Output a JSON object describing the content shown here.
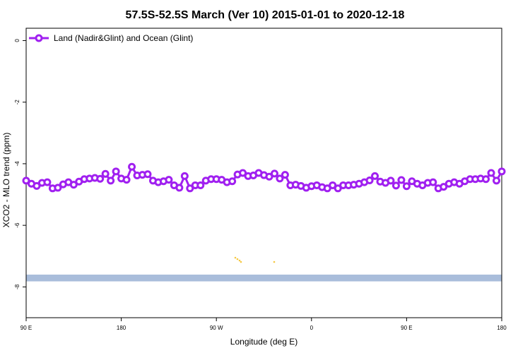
{
  "chart_data": {
    "type": "line",
    "title": "57.5S-52.5S March (Ver 10)   2015-01-01 to 2020-12-18",
    "xlabel": "Longitude (deg E)",
    "ylabel": "XCO2 - MLO trend (ppm)",
    "xlim": [
      90,
      450
    ],
    "ylim": [
      -9.0,
      0.4
    ],
    "x_ticks": [
      {
        "value": 90,
        "label": "90 E"
      },
      {
        "value": 180,
        "label": "180"
      },
      {
        "value": 270,
        "label": "90 W"
      },
      {
        "value": 360,
        "label": "0"
      },
      {
        "value": 450,
        "label": "90 E"
      },
      {
        "value": 540,
        "label": "180"
      }
    ],
    "y_ticks": [
      {
        "value": 0,
        "label": "0"
      },
      {
        "value": -2,
        "label": "-2"
      },
      {
        "value": -4,
        "label": "-4"
      },
      {
        "value": -6,
        "label": "-6"
      },
      {
        "value": -8,
        "label": "-8"
      }
    ],
    "x_note": "Longitude sampled every 5 degrees from 90 E eastward through 180 and back to 90 E/180 (unwrapped 90..540)",
    "series": [
      {
        "name": "Land (Nadir&Glint) and Ocean (Glint)",
        "color": "#a020f0",
        "x_start": 90,
        "x_step": 5,
        "values": [
          -4.55,
          -4.65,
          -4.72,
          -4.62,
          -4.6,
          -4.8,
          -4.78,
          -4.67,
          -4.6,
          -4.68,
          -4.58,
          -4.5,
          -4.48,
          -4.46,
          -4.49,
          -4.33,
          -4.55,
          -4.25,
          -4.48,
          -4.52,
          -4.1,
          -4.38,
          -4.36,
          -4.34,
          -4.55,
          -4.6,
          -4.57,
          -4.52,
          -4.7,
          -4.78,
          -4.4,
          -4.8,
          -4.7,
          -4.7,
          -4.55,
          -4.5,
          -4.5,
          -4.52,
          -4.6,
          -4.57,
          -4.35,
          -4.3,
          -4.4,
          -4.38,
          -4.3,
          -4.37,
          -4.42,
          -4.32,
          -4.48,
          -4.36,
          -4.7,
          -4.68,
          -4.72,
          -4.78,
          -4.73,
          -4.7,
          -4.76,
          -4.8,
          -4.7,
          -4.8,
          -4.7,
          -4.7,
          -4.68,
          -4.65,
          -4.6,
          -4.54,
          -4.4,
          -4.58,
          -4.62,
          -4.55,
          -4.71,
          -4.53,
          -4.73,
          -4.57,
          -4.65,
          -4.7,
          -4.62,
          -4.6,
          -4.8,
          -4.75,
          -4.65,
          -4.6,
          -4.65,
          -4.57,
          -4.5,
          -4.5,
          -4.48,
          -4.5,
          -4.3,
          -4.55,
          -4.25
        ]
      }
    ],
    "legend": {
      "position": "top-left"
    },
    "grid": false,
    "band": {
      "y_top": -7.6,
      "y_bottom": -7.82,
      "color": "#a9bddb"
    },
    "band_marks_color": "#f5c842"
  }
}
